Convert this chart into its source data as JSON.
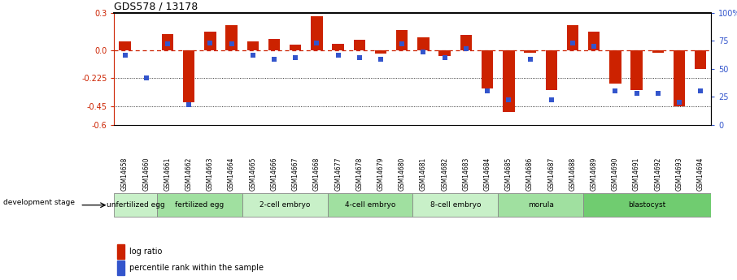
{
  "title": "GDS578 / 13178",
  "samples": [
    "GSM14658",
    "GSM14660",
    "GSM14661",
    "GSM14662",
    "GSM14663",
    "GSM14664",
    "GSM14665",
    "GSM14666",
    "GSM14667",
    "GSM14668",
    "GSM14677",
    "GSM14678",
    "GSM14679",
    "GSM14680",
    "GSM14681",
    "GSM14682",
    "GSM14683",
    "GSM14684",
    "GSM14685",
    "GSM14686",
    "GSM14687",
    "GSM14688",
    "GSM14689",
    "GSM14690",
    "GSM14691",
    "GSM14692",
    "GSM14693",
    "GSM14694"
  ],
  "log_ratio": [
    0.07,
    -0.005,
    0.13,
    -0.42,
    0.15,
    0.2,
    0.07,
    0.09,
    0.04,
    0.27,
    0.05,
    0.08,
    -0.03,
    0.16,
    0.1,
    -0.05,
    0.12,
    -0.31,
    -0.5,
    -0.02,
    -0.32,
    0.2,
    0.15,
    -0.27,
    -0.32,
    -0.02,
    -0.45,
    -0.15
  ],
  "percentile_rank": [
    62,
    42,
    72,
    18,
    73,
    72,
    62,
    58,
    60,
    73,
    62,
    60,
    58,
    72,
    65,
    60,
    68,
    30,
    22,
    58,
    22,
    73,
    70,
    30,
    28,
    28,
    20,
    30
  ],
  "stage_groups": [
    {
      "label": "unfertilized egg",
      "start": 0,
      "end": 2,
      "color": "#c8f0c8"
    },
    {
      "label": "fertilized egg",
      "start": 2,
      "end": 6,
      "color": "#a0e0a0"
    },
    {
      "label": "2-cell embryo",
      "start": 6,
      "end": 10,
      "color": "#c8f0c8"
    },
    {
      "label": "4-cell embryo",
      "start": 10,
      "end": 14,
      "color": "#a0e0a0"
    },
    {
      "label": "8-cell embryo",
      "start": 14,
      "end": 18,
      "color": "#c8f0c8"
    },
    {
      "label": "morula",
      "start": 18,
      "end": 22,
      "color": "#a0e0a0"
    },
    {
      "label": "blastocyst",
      "start": 22,
      "end": 28,
      "color": "#70cc70"
    }
  ],
  "ylim": [
    -0.6,
    0.3
  ],
  "y_ticks_left": [
    0.3,
    0.0,
    -0.225,
    -0.45,
    -0.6
  ],
  "y_ticks_right": [
    100,
    75,
    50,
    25,
    0
  ],
  "hlines_dotted": [
    -0.225,
    -0.45
  ],
  "bar_color": "#cc2200",
  "dot_color": "#3355cc",
  "ref_line_color": "#cc2200",
  "legend_items": [
    "log ratio",
    "percentile rank within the sample"
  ],
  "dev_stage_label": "development stage"
}
